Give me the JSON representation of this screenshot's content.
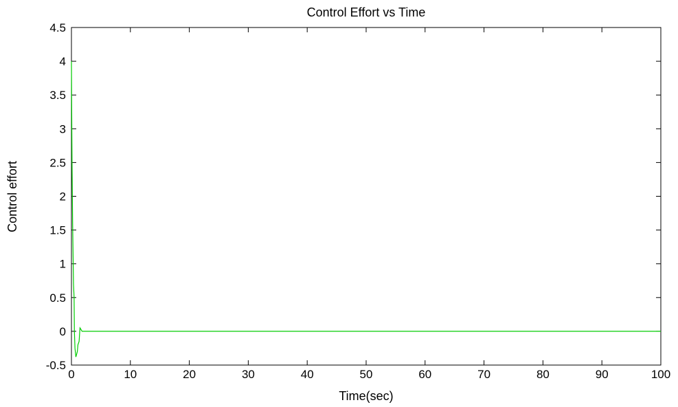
{
  "chart_data": {
    "type": "line",
    "title": "Control Effort vs Time",
    "xlabel": "Time(sec)",
    "ylabel": "Control effort",
    "xlim": [
      0,
      100
    ],
    "ylim": [
      -0.5,
      4.5
    ],
    "xticks": [
      0,
      10,
      20,
      30,
      40,
      50,
      60,
      70,
      80,
      90,
      100
    ],
    "yticks": [
      -0.5,
      0,
      0.5,
      1,
      1.5,
      2,
      2.5,
      3,
      3.5,
      4,
      4.5
    ],
    "xtick_labels": [
      "0",
      "10",
      "20",
      "30",
      "40",
      "50",
      "60",
      "70",
      "80",
      "90",
      "100"
    ],
    "ytick_labels": [
      "-0.5",
      "0",
      "0.5",
      "1",
      "1.5",
      "2",
      "2.5",
      "3",
      "3.5",
      "4",
      "4.5"
    ],
    "grid": false,
    "legend": "none",
    "series": [
      {
        "color": "#00cc00",
        "x": [
          0,
          0.05,
          0.1,
          0.2,
          0.35,
          0.45,
          0.5,
          0.6,
          0.75,
          0.85,
          1.0,
          1.1,
          1.3,
          1.45,
          1.6,
          1.8,
          2.0,
          2.5,
          5,
          100
        ],
        "y": [
          4.0,
          3.2,
          2.5,
          1.6,
          0.7,
          0.5,
          0.0,
          -0.25,
          -0.38,
          -0.35,
          -0.3,
          -0.2,
          -0.15,
          0.05,
          0.03,
          0.0,
          0.0,
          0.0,
          0.0,
          0.0
        ]
      }
    ]
  }
}
